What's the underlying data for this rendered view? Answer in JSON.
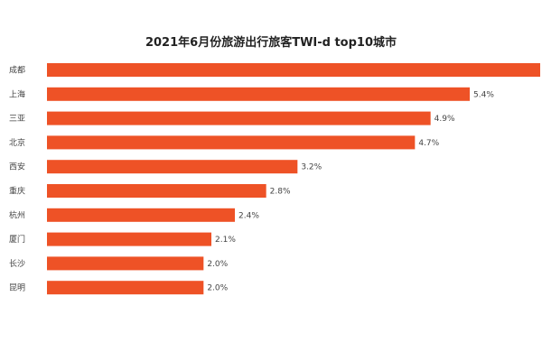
{
  "chart_data": {
    "type": "bar",
    "orientation": "horizontal",
    "title": "2021年6月份旅游出行旅客TWI-d top10城市",
    "categories": [
      "成都",
      "上海",
      "三亚",
      "北京",
      "西安",
      "重庆",
      "杭州",
      "厦门",
      "长沙",
      "昆明"
    ],
    "values": [
      6.3,
      5.4,
      4.9,
      4.7,
      3.2,
      2.8,
      2.4,
      2.1,
      2.0,
      2.0
    ],
    "data_labels": [
      "",
      "5.4%",
      "4.9%",
      "4.7%",
      "3.2%",
      "2.8%",
      "2.4%",
      "2.1%",
      "2.0%",
      "2.0%"
    ],
    "unit": "%",
    "bar_color": "#ee5226",
    "grid": false,
    "legend": "none"
  }
}
